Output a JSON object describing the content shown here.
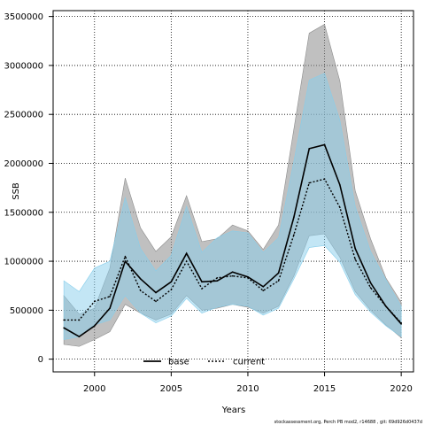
{
  "chart_data": {
    "type": "area",
    "title": "",
    "xlabel": "Years",
    "ylabel": "SSB",
    "xlim": [
      1997.3,
      2020.8
    ],
    "ylim": [
      -130000,
      3560000
    ],
    "x_ticks": [
      2000,
      2005,
      2010,
      2015,
      2020
    ],
    "x_tick_labels": [
      "2000",
      "2005",
      "2010",
      "2015",
      "2020"
    ],
    "y_ticks": [
      0,
      500000,
      1000000,
      1500000,
      2000000,
      2500000,
      3000000,
      3500000
    ],
    "y_tick_labels": [
      "0",
      "500000",
      "1000000",
      "1500000",
      "2000000",
      "2500000",
      "3000000",
      "3500000"
    ],
    "grid": true,
    "legend_position": "bottom-left",
    "x": [
      1998,
      1999,
      2000,
      2001,
      2002,
      2003,
      2004,
      2005,
      2006,
      2007,
      2008,
      2009,
      2010,
      2011,
      2012,
      2013,
      2014,
      2015,
      2016,
      2017,
      2018,
      2019,
      2020
    ],
    "series": [
      {
        "name": "base",
        "color": "#000000",
        "band_color": "#8c8c8c",
        "line_style": "solid",
        "values": [
          320000,
          230000,
          340000,
          520000,
          1000000,
          820000,
          680000,
          790000,
          1080000,
          790000,
          800000,
          890000,
          840000,
          740000,
          880000,
          1450000,
          2150000,
          2190000,
          1780000,
          1130000,
          780000,
          540000,
          360000
        ],
        "upper": [
          650000,
          460000,
          520000,
          930000,
          1850000,
          1340000,
          1100000,
          1250000,
          1670000,
          1200000,
          1230000,
          1370000,
          1310000,
          1120000,
          1370000,
          2350000,
          3330000,
          3420000,
          2840000,
          1720000,
          1230000,
          830000,
          580000
        ],
        "lower": [
          150000,
          130000,
          200000,
          280000,
          560000,
          470000,
          400000,
          460000,
          650000,
          500000,
          520000,
          560000,
          530000,
          470000,
          540000,
          850000,
          1260000,
          1280000,
          1040000,
          690000,
          500000,
          350000,
          220000
        ]
      },
      {
        "name": "current",
        "color": "#000000",
        "band_color": "#87ceeb",
        "line_style": "dotted",
        "values": [
          400000,
          400000,
          590000,
          640000,
          1050000,
          700000,
          590000,
          710000,
          1000000,
          720000,
          830000,
          850000,
          830000,
          700000,
          800000,
          1270000,
          1800000,
          1840000,
          1550000,
          1020000,
          730000,
          540000,
          370000
        ],
        "upper": [
          800000,
          690000,
          930000,
          1000000,
          1650000,
          1130000,
          900000,
          1060000,
          1560000,
          1090000,
          1240000,
          1310000,
          1290000,
          1090000,
          1240000,
          2020000,
          2850000,
          2920000,
          2440000,
          1560000,
          1100000,
          810000,
          540000
        ],
        "lower": [
          200000,
          230000,
          350000,
          400000,
          650000,
          470000,
          370000,
          440000,
          620000,
          470000,
          530000,
          560000,
          540000,
          450000,
          520000,
          820000,
          1140000,
          1160000,
          990000,
          660000,
          480000,
          340000,
          230000
        ]
      }
    ]
  },
  "footnote": "stockassessment.org, Perch PB mod2, r14688 , git: 69d926d0437d"
}
